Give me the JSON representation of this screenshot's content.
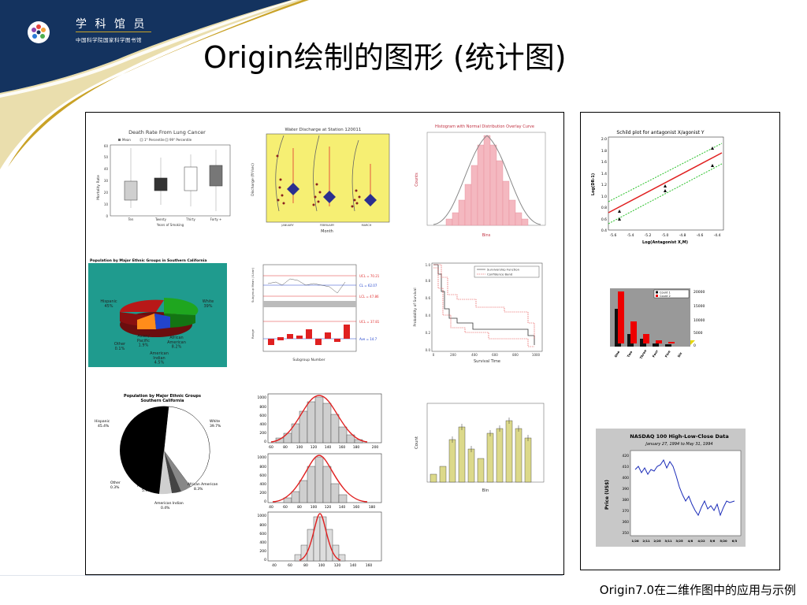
{
  "logo": {
    "title": "学 科 馆 员",
    "subtitle": "中国科学院国家科学图书馆"
  },
  "slide_title": "Origin绘制的图形 (统计图)",
  "footer": "Origin7.0在二维作图中的应用与示例",
  "colors": {
    "header_navy": "#14335f",
    "header_gold": "#c9a227",
    "chart_yellow_bg": "#f6ef73",
    "histogram_pink": "#f4b8c0",
    "pie_bg_teal": "#1f9b8e",
    "bar_olive": "#dcd98a"
  },
  "charts": {
    "box_plot": {
      "title": "Death Rate From Lung Cancer",
      "xlabel": "Years of Smoking",
      "ylabel": "Mortality Rate",
      "legend": [
        "Mean",
        "1° Percentile",
        "99° Percentile"
      ],
      "categories": [
        "Ten",
        "Twenty",
        "Thirty",
        "Forty +"
      ],
      "yticks": [
        "0",
        "10",
        "20",
        "30",
        "40",
        "50",
        "60"
      ]
    },
    "water_discharge": {
      "title": "Water Discharge at Station 120011",
      "xlabel": "Month",
      "ylabel": "Discharge (ft³/sec)",
      "categories": [
        "JANUARY",
        "FEBRUARY",
        "MARCH"
      ]
    },
    "normal_histogram": {
      "title": "Histogram with Normal Distribution Overlay Curve",
      "xlabel": "Bins",
      "ylabel": "Counts"
    },
    "pie_3d": {
      "title": "Population by Major Ethnic Groups in Southern California",
      "labels": [
        "Hispanic\n45%",
        "White\n39%",
        "Asian/\nPacific\n1.9%",
        "African\nAmerican\n8.2%",
        "Other\n0.1%",
        "American\nIndian\n4.5%"
      ]
    },
    "control_chart": {
      "xlabel": "Subgroup Number",
      "ylabel_top": "Subgroup Mean (X-bar)",
      "ylabel_bottom": "Range",
      "annotations": [
        "UCL = 70.21",
        "CL = 62.07",
        "LCL = 47.86",
        "UCL = 37.81",
        "Ave = 14.7"
      ]
    },
    "survival": {
      "xlabel": "Survival Time",
      "ylabel": "Probability of Survival",
      "legend": [
        "Survivorship Function",
        "Confidence Band"
      ],
      "xticks": [
        "0",
        "200",
        "400",
        "600",
        "800",
        "1000"
      ],
      "yticks": [
        "0.0",
        "0.2",
        "0.4",
        "0.6",
        "0.8",
        "1.0"
      ]
    },
    "pie_bw": {
      "title": "Population by Major Ethnic Groups\nSouthern California",
      "labels": [
        "Hispanic\n45.4%",
        "White\n39.7%",
        "African American\n8.3%",
        "American Indian\n0.4%",
        "Asian/Pacific\n5.9%",
        "Other\n0.3%"
      ]
    },
    "stacked_histograms": {
      "yticks": [
        "0",
        "200",
        "400",
        "600",
        "800",
        "1000"
      ],
      "xticks_a": [
        "60",
        "80",
        "100",
        "120",
        "140",
        "160",
        "180",
        "200"
      ],
      "xticks_b": [
        "40",
        "60",
        "80",
        "100",
        "120",
        "140",
        "160",
        "180"
      ],
      "xticks_c": [
        "40",
        "60",
        "80",
        "100",
        "120",
        "140",
        "160"
      ]
    },
    "bar_errors": {
      "xlabel": "Bin",
      "ylabel": "Count"
    },
    "schild": {
      "title": "Schild plot for antagonist X/agonist Y",
      "xlabel": "Log(Antagonist X,M)",
      "ylabel": "Log(DR-1)",
      "yticks": [
        "0.4",
        "0.6",
        "0.8",
        "1.0",
        "1.2",
        "1.4",
        "1.6",
        "1.8",
        "2.0"
      ],
      "xticks": [
        "-5.6",
        "-5.4",
        "-5.2",
        "-5.0",
        "-4.8",
        "-4.6",
        "-4.4"
      ]
    },
    "bar_3d": {
      "legend": [
        "Count 1",
        "Count 2"
      ],
      "categories": [
        "One",
        "Two",
        "Three",
        "Four",
        "Five",
        "Six"
      ],
      "yticks": [
        "0",
        "5000",
        "10000",
        "15000",
        "20000"
      ]
    },
    "nasdaq": {
      "title": "NASDAQ 100 High-Low-Close Data",
      "subtitle": "January 27, 1994 to May 31, 1994",
      "ylabel": "Price (US$)",
      "yticks": [
        "420",
        "410",
        "400",
        "390",
        "380",
        "370",
        "360",
        "350"
      ],
      "xticks": [
        "1/28",
        "2/11",
        "2/25",
        "3/11",
        "3/25",
        "4/8",
        "4/22",
        "5/6",
        "5/20",
        "6/3"
      ]
    }
  }
}
